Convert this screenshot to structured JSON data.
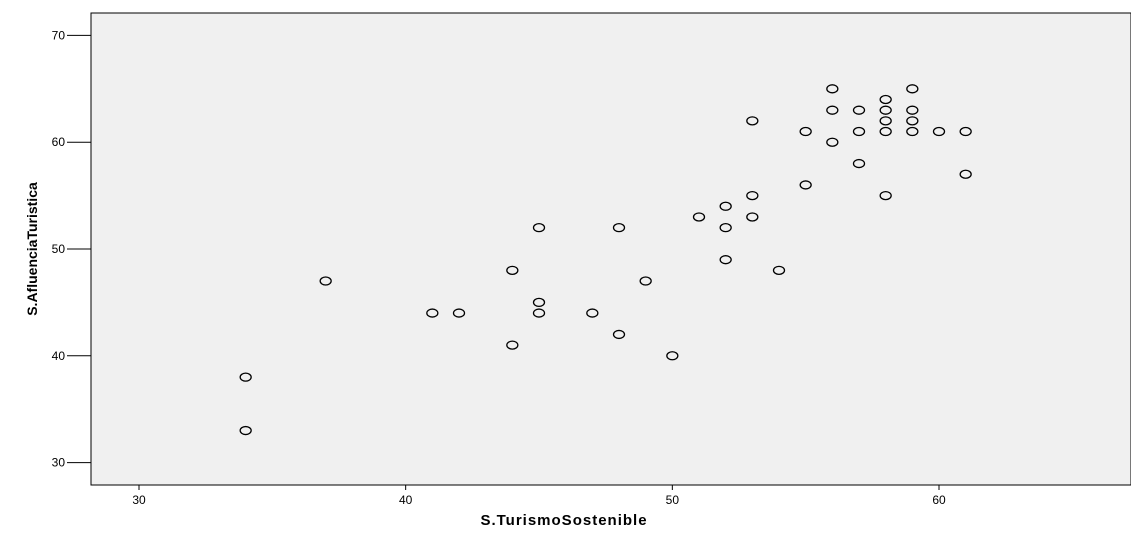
{
  "chart_data": {
    "type": "scatter",
    "xlabel": "S.TurismoSostenible",
    "ylabel": "S.AfluenciaTuristica",
    "xlim": [
      28.2,
      67.2
    ],
    "ylim": [
      27.9,
      72.1
    ],
    "xticks": [
      30,
      40,
      50,
      60
    ],
    "yticks": [
      30,
      40,
      50,
      60,
      70
    ],
    "grid": false,
    "colors": {
      "plot_background": "#f0f0f0",
      "point_stroke": "#000000"
    },
    "points": [
      {
        "x": 34,
        "y": 38
      },
      {
        "x": 34,
        "y": 33
      },
      {
        "x": 37,
        "y": 47
      },
      {
        "x": 41,
        "y": 44
      },
      {
        "x": 42,
        "y": 44
      },
      {
        "x": 44,
        "y": 48
      },
      {
        "x": 44,
        "y": 41
      },
      {
        "x": 45,
        "y": 52
      },
      {
        "x": 45,
        "y": 45
      },
      {
        "x": 45,
        "y": 44
      },
      {
        "x": 47,
        "y": 44
      },
      {
        "x": 48,
        "y": 52
      },
      {
        "x": 48,
        "y": 42
      },
      {
        "x": 49,
        "y": 47
      },
      {
        "x": 50,
        "y": 40
      },
      {
        "x": 51,
        "y": 53
      },
      {
        "x": 52,
        "y": 54
      },
      {
        "x": 52,
        "y": 52
      },
      {
        "x": 52,
        "y": 49
      },
      {
        "x": 53,
        "y": 62
      },
      {
        "x": 53,
        "y": 55
      },
      {
        "x": 53,
        "y": 53
      },
      {
        "x": 54,
        "y": 48
      },
      {
        "x": 55,
        "y": 61
      },
      {
        "x": 55,
        "y": 56
      },
      {
        "x": 56,
        "y": 65
      },
      {
        "x": 56,
        "y": 63
      },
      {
        "x": 56,
        "y": 60
      },
      {
        "x": 57,
        "y": 63
      },
      {
        "x": 57,
        "y": 61
      },
      {
        "x": 57,
        "y": 58
      },
      {
        "x": 58,
        "y": 64
      },
      {
        "x": 58,
        "y": 63
      },
      {
        "x": 58,
        "y": 62
      },
      {
        "x": 58,
        "y": 61
      },
      {
        "x": 58,
        "y": 55
      },
      {
        "x": 59,
        "y": 65
      },
      {
        "x": 59,
        "y": 63
      },
      {
        "x": 59,
        "y": 62
      },
      {
        "x": 59,
        "y": 61
      },
      {
        "x": 60,
        "y": 61
      },
      {
        "x": 61,
        "y": 61
      },
      {
        "x": 61,
        "y": 57
      }
    ]
  }
}
